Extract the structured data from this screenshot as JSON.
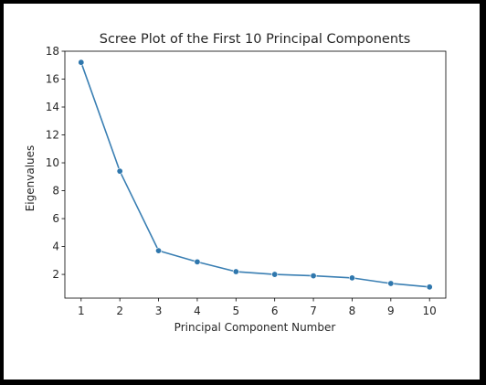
{
  "chart_data": {
    "type": "line",
    "title": "Scree Plot of the First 10 Principal Components",
    "xlabel": "Principal Component Number",
    "ylabel": "Eigenvalues",
    "x": [
      1,
      2,
      3,
      4,
      5,
      6,
      7,
      8,
      9,
      10
    ],
    "series": [
      {
        "values": [
          17.2,
          9.4,
          3.7,
          2.9,
          2.2,
          2.0,
          1.9,
          1.75,
          1.35,
          1.1
        ]
      }
    ],
    "xlim": [
      0.58,
      10.42
    ],
    "ylim": [
      0.3,
      18.0
    ],
    "xticks": [
      "1",
      "2",
      "3",
      "4",
      "5",
      "6",
      "7",
      "8",
      "9",
      "10"
    ],
    "yticks": [
      {
        "value": 2,
        "label": "2"
      },
      {
        "value": 4,
        "label": "4"
      },
      {
        "value": 6,
        "label": "6"
      },
      {
        "value": 8,
        "label": "8"
      },
      {
        "value": 10,
        "label": "10"
      },
      {
        "value": 12,
        "label": "12"
      },
      {
        "value": 14,
        "label": "14"
      },
      {
        "value": 16,
        "label": "16"
      },
      {
        "value": 18,
        "label": "18"
      }
    ],
    "grid": false,
    "line_color": "#3a7fb3",
    "marker_color": "#2f77ad"
  }
}
